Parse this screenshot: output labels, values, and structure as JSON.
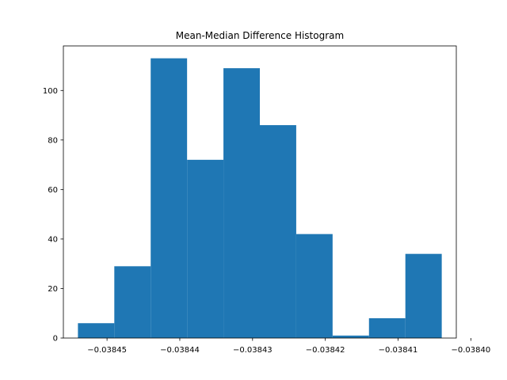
{
  "chart_data": {
    "type": "bar",
    "title": "Mean-Median Difference Histogram",
    "xlabel": "",
    "ylabel": "",
    "bin_edges": [
      -0.038454,
      -0.038449,
      -0.038444,
      -0.038439,
      -0.038434,
      -0.038429,
      -0.038424,
      -0.038419,
      -0.038414,
      -0.038409,
      -0.038404
    ],
    "counts": [
      6,
      29,
      113,
      72,
      109,
      86,
      42,
      1,
      8,
      34
    ],
    "xlim": [
      -0.038456,
      -0.038402
    ],
    "ylim": [
      0,
      118
    ],
    "x_ticks": [
      -0.03845,
      -0.03844,
      -0.03843,
      -0.03842,
      -0.03841,
      -0.0384
    ],
    "x_tick_labels": [
      "−0.03845",
      "−0.03844",
      "−0.03843",
      "−0.03842",
      "−0.03841",
      "−0.03840"
    ],
    "y_ticks": [
      0,
      20,
      40,
      60,
      80,
      100
    ],
    "y_tick_labels": [
      "0",
      "20",
      "40",
      "60",
      "80",
      "100"
    ],
    "bar_color": "#1f77b4",
    "grid": false
  }
}
